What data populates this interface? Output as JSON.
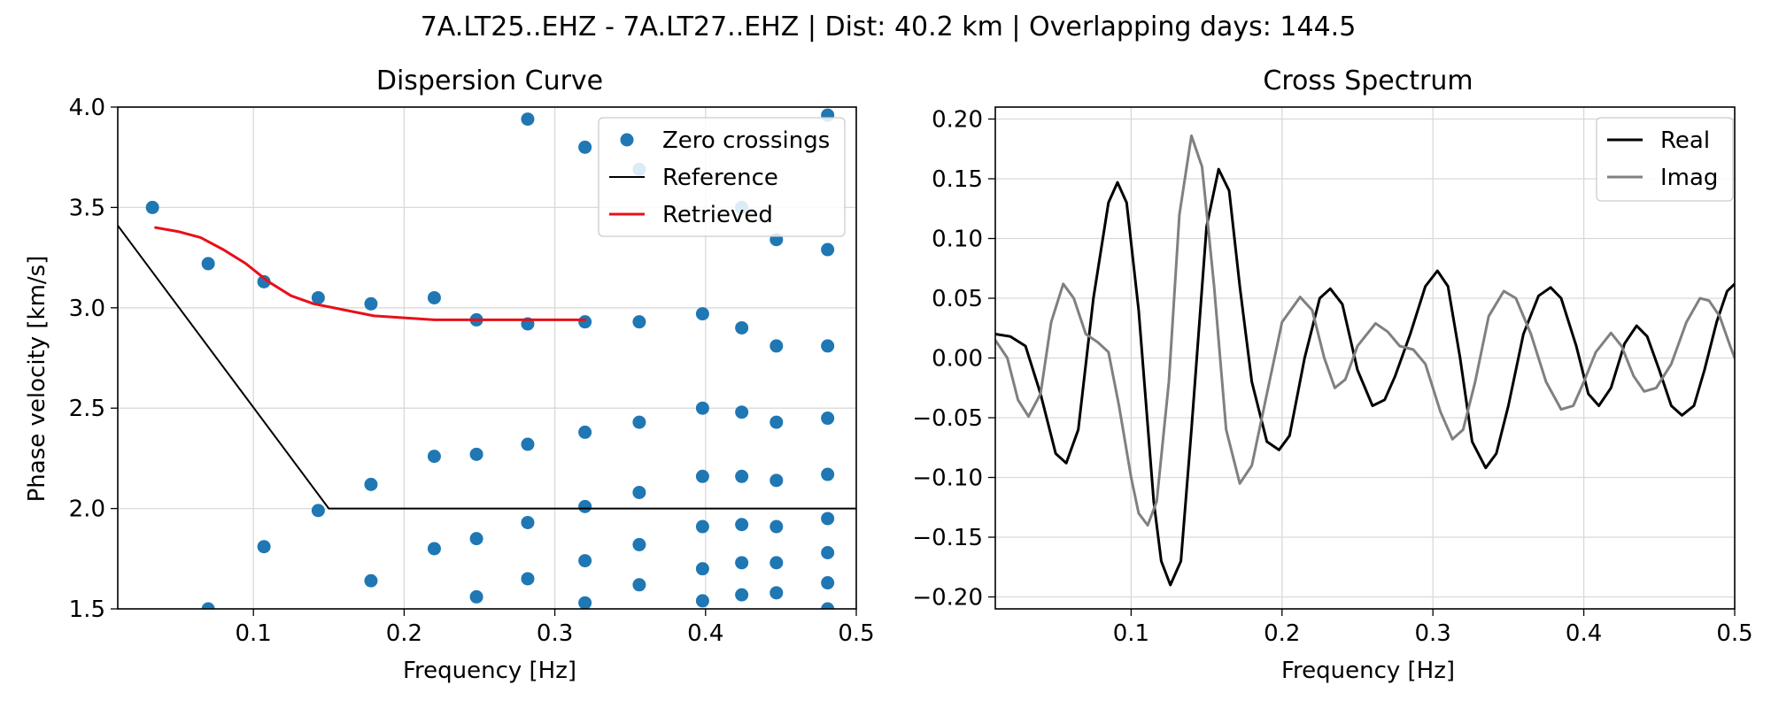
{
  "figure": {
    "suptitle": "7A.LT25..EHZ - 7A.LT27..EHZ | Dist: 40.2 km | Overlapping days: 144.5"
  },
  "colors": {
    "zero_crossings": "#1f77b4",
    "reference": "#000000",
    "retrieved": "#e8101a",
    "real": "#000000",
    "imag": "#808080",
    "grid": "#d9d9d9"
  },
  "chart_data": [
    {
      "type": "scatter",
      "title": "Dispersion Curve",
      "xlabel": "Frequency [Hz]",
      "ylabel": "Phase velocity [km/s]",
      "xlim": [
        0.01,
        0.5
      ],
      "ylim": [
        1.5,
        4.0
      ],
      "xticks": [
        0.1,
        0.2,
        0.3,
        0.4,
        0.5
      ],
      "xtick_labels": [
        "0.1",
        "0.2",
        "0.3",
        "0.4",
        "0.5"
      ],
      "yticks": [
        1.5,
        2.0,
        2.5,
        3.0,
        3.5,
        4.0
      ],
      "ytick_labels": [
        "1.5",
        "2.0",
        "2.5",
        "3.0",
        "3.5",
        "4.0"
      ],
      "grid": true,
      "legend_position": "top-right",
      "series": [
        {
          "name": "Zero crossings",
          "kind": "scatter",
          "points": [
            [
              0.033,
              3.5
            ],
            [
              0.07,
              3.22
            ],
            [
              0.07,
              1.5
            ],
            [
              0.107,
              3.13
            ],
            [
              0.107,
              1.81
            ],
            [
              0.143,
              3.05
            ],
            [
              0.143,
              1.99
            ],
            [
              0.178,
              3.02
            ],
            [
              0.178,
              2.12
            ],
            [
              0.178,
              1.64
            ],
            [
              0.22,
              3.05
            ],
            [
              0.22,
              2.26
            ],
            [
              0.22,
              1.8
            ],
            [
              0.248,
              2.94
            ],
            [
              0.248,
              2.27
            ],
            [
              0.248,
              1.85
            ],
            [
              0.248,
              1.56
            ],
            [
              0.282,
              3.94
            ],
            [
              0.282,
              2.92
            ],
            [
              0.282,
              2.32
            ],
            [
              0.282,
              1.93
            ],
            [
              0.282,
              1.65
            ],
            [
              0.32,
              3.8
            ],
            [
              0.32,
              2.93
            ],
            [
              0.32,
              2.38
            ],
            [
              0.32,
              2.01
            ],
            [
              0.32,
              1.74
            ],
            [
              0.32,
              1.53
            ],
            [
              0.356,
              3.69
            ],
            [
              0.356,
              2.93
            ],
            [
              0.356,
              2.43
            ],
            [
              0.356,
              2.08
            ],
            [
              0.356,
              1.82
            ],
            [
              0.356,
              1.62
            ],
            [
              0.398,
              2.97
            ],
            [
              0.398,
              2.5
            ],
            [
              0.398,
              2.16
            ],
            [
              0.398,
              1.91
            ],
            [
              0.398,
              1.7
            ],
            [
              0.398,
              1.54
            ],
            [
              0.424,
              3.5
            ],
            [
              0.424,
              2.9
            ],
            [
              0.424,
              2.48
            ],
            [
              0.424,
              2.16
            ],
            [
              0.424,
              1.92
            ],
            [
              0.424,
              1.73
            ],
            [
              0.424,
              1.57
            ],
            [
              0.447,
              3.34
            ],
            [
              0.447,
              2.81
            ],
            [
              0.447,
              2.43
            ],
            [
              0.447,
              2.14
            ],
            [
              0.447,
              1.91
            ],
            [
              0.447,
              1.73
            ],
            [
              0.447,
              1.58
            ],
            [
              0.481,
              3.96
            ],
            [
              0.481,
              3.29
            ],
            [
              0.481,
              2.81
            ],
            [
              0.481,
              2.45
            ],
            [
              0.481,
              2.17
            ],
            [
              0.481,
              1.95
            ],
            [
              0.481,
              1.78
            ],
            [
              0.481,
              1.63
            ],
            [
              0.481,
              1.5
            ]
          ]
        },
        {
          "name": "Reference",
          "kind": "line",
          "points": [
            [
              0.01,
              3.41
            ],
            [
              0.15,
              2.0
            ],
            [
              0.5,
              2.0
            ]
          ]
        },
        {
          "name": "Retrieved",
          "kind": "line",
          "points": [
            [
              0.035,
              3.4
            ],
            [
              0.05,
              3.38
            ],
            [
              0.065,
              3.35
            ],
            [
              0.08,
              3.29
            ],
            [
              0.095,
              3.22
            ],
            [
              0.11,
              3.13
            ],
            [
              0.125,
              3.06
            ],
            [
              0.14,
              3.02
            ],
            [
              0.16,
              2.99
            ],
            [
              0.18,
              2.96
            ],
            [
              0.2,
              2.95
            ],
            [
              0.22,
              2.94
            ],
            [
              0.25,
              2.94
            ],
            [
              0.28,
              2.94
            ],
            [
              0.3,
              2.94
            ],
            [
              0.32,
              2.94
            ]
          ]
        }
      ]
    },
    {
      "type": "line",
      "title": "Cross Spectrum",
      "xlabel": "Frequency [Hz]",
      "ylabel": "",
      "xlim": [
        0.01,
        0.5
      ],
      "ylim": [
        -0.21,
        0.21
      ],
      "xticks": [
        0.1,
        0.2,
        0.3,
        0.4,
        0.5
      ],
      "xtick_labels": [
        "0.1",
        "0.2",
        "0.3",
        "0.4",
        "0.5"
      ],
      "yticks": [
        -0.2,
        -0.15,
        -0.1,
        -0.05,
        0.0,
        0.05,
        0.1,
        0.15,
        0.2
      ],
      "ytick_labels": [
        "−0.20",
        "−0.15",
        "−0.10",
        "−0.05",
        "0.00",
        "0.05",
        "0.10",
        "0.15",
        "0.20"
      ],
      "grid": true,
      "legend_position": "top-right",
      "series": [
        {
          "name": "Real",
          "points": [
            [
              0.01,
              0.02
            ],
            [
              0.02,
              0.018
            ],
            [
              0.03,
              0.01
            ],
            [
              0.04,
              -0.03
            ],
            [
              0.05,
              -0.08
            ],
            [
              0.057,
              -0.088
            ],
            [
              0.065,
              -0.06
            ],
            [
              0.075,
              0.05
            ],
            [
              0.085,
              0.13
            ],
            [
              0.091,
              0.147
            ],
            [
              0.097,
              0.13
            ],
            [
              0.105,
              0.04
            ],
            [
              0.115,
              -0.12
            ],
            [
              0.12,
              -0.17
            ],
            [
              0.126,
              -0.19
            ],
            [
              0.133,
              -0.17
            ],
            [
              0.14,
              -0.06
            ],
            [
              0.15,
              0.11
            ],
            [
              0.158,
              0.158
            ],
            [
              0.165,
              0.14
            ],
            [
              0.172,
              0.06
            ],
            [
              0.18,
              -0.02
            ],
            [
              0.19,
              -0.07
            ],
            [
              0.198,
              -0.077
            ],
            [
              0.205,
              -0.065
            ],
            [
              0.215,
              0.0
            ],
            [
              0.225,
              0.05
            ],
            [
              0.232,
              0.058
            ],
            [
              0.24,
              0.045
            ],
            [
              0.25,
              -0.01
            ],
            [
              0.26,
              -0.04
            ],
            [
              0.268,
              -0.035
            ],
            [
              0.275,
              -0.015
            ],
            [
              0.285,
              0.02
            ],
            [
              0.295,
              0.06
            ],
            [
              0.303,
              0.073
            ],
            [
              0.31,
              0.06
            ],
            [
              0.318,
              0.0
            ],
            [
              0.326,
              -0.07
            ],
            [
              0.335,
              -0.092
            ],
            [
              0.342,
              -0.08
            ],
            [
              0.35,
              -0.04
            ],
            [
              0.36,
              0.02
            ],
            [
              0.37,
              0.052
            ],
            [
              0.378,
              0.059
            ],
            [
              0.385,
              0.05
            ],
            [
              0.395,
              0.01
            ],
            [
              0.403,
              -0.03
            ],
            [
              0.41,
              -0.04
            ],
            [
              0.418,
              -0.025
            ],
            [
              0.427,
              0.012
            ],
            [
              0.435,
              0.027
            ],
            [
              0.442,
              0.018
            ],
            [
              0.45,
              -0.01
            ],
            [
              0.458,
              -0.04
            ],
            [
              0.465,
              -0.048
            ],
            [
              0.473,
              -0.04
            ],
            [
              0.48,
              -0.01
            ],
            [
              0.488,
              0.03
            ],
            [
              0.495,
              0.056
            ],
            [
              0.5,
              0.062
            ]
          ]
        },
        {
          "name": "Imag",
          "points": [
            [
              0.01,
              0.015
            ],
            [
              0.018,
              0.0
            ],
            [
              0.025,
              -0.035
            ],
            [
              0.032,
              -0.049
            ],
            [
              0.04,
              -0.03
            ],
            [
              0.047,
              0.03
            ],
            [
              0.055,
              0.062
            ],
            [
              0.062,
              0.05
            ],
            [
              0.07,
              0.02
            ],
            [
              0.078,
              0.013
            ],
            [
              0.085,
              0.005
            ],
            [
              0.092,
              -0.04
            ],
            [
              0.1,
              -0.1
            ],
            [
              0.105,
              -0.13
            ],
            [
              0.111,
              -0.14
            ],
            [
              0.117,
              -0.12
            ],
            [
              0.125,
              -0.02
            ],
            [
              0.132,
              0.12
            ],
            [
              0.14,
              0.186
            ],
            [
              0.147,
              0.16
            ],
            [
              0.155,
              0.06
            ],
            [
              0.163,
              -0.06
            ],
            [
              0.172,
              -0.105
            ],
            [
              0.18,
              -0.09
            ],
            [
              0.19,
              -0.03
            ],
            [
              0.2,
              0.03
            ],
            [
              0.212,
              0.051
            ],
            [
              0.22,
              0.04
            ],
            [
              0.228,
              0.0
            ],
            [
              0.235,
              -0.025
            ],
            [
              0.242,
              -0.018
            ],
            [
              0.25,
              0.01
            ],
            [
              0.262,
              0.029
            ],
            [
              0.27,
              0.022
            ],
            [
              0.278,
              0.01
            ],
            [
              0.287,
              0.007
            ],
            [
              0.295,
              -0.005
            ],
            [
              0.305,
              -0.045
            ],
            [
              0.313,
              -0.068
            ],
            [
              0.32,
              -0.06
            ],
            [
              0.328,
              -0.02
            ],
            [
              0.337,
              0.035
            ],
            [
              0.347,
              0.056
            ],
            [
              0.355,
              0.05
            ],
            [
              0.365,
              0.02
            ],
            [
              0.375,
              -0.02
            ],
            [
              0.385,
              -0.043
            ],
            [
              0.393,
              -0.04
            ],
            [
              0.4,
              -0.02
            ],
            [
              0.408,
              0.005
            ],
            [
              0.418,
              0.021
            ],
            [
              0.425,
              0.01
            ],
            [
              0.433,
              -0.015
            ],
            [
              0.44,
              -0.028
            ],
            [
              0.448,
              -0.025
            ],
            [
              0.458,
              -0.005
            ],
            [
              0.468,
              0.03
            ],
            [
              0.477,
              0.05
            ],
            [
              0.483,
              0.048
            ],
            [
              0.49,
              0.035
            ],
            [
              0.497,
              0.01
            ],
            [
              0.5,
              0.0
            ]
          ]
        }
      ]
    }
  ]
}
